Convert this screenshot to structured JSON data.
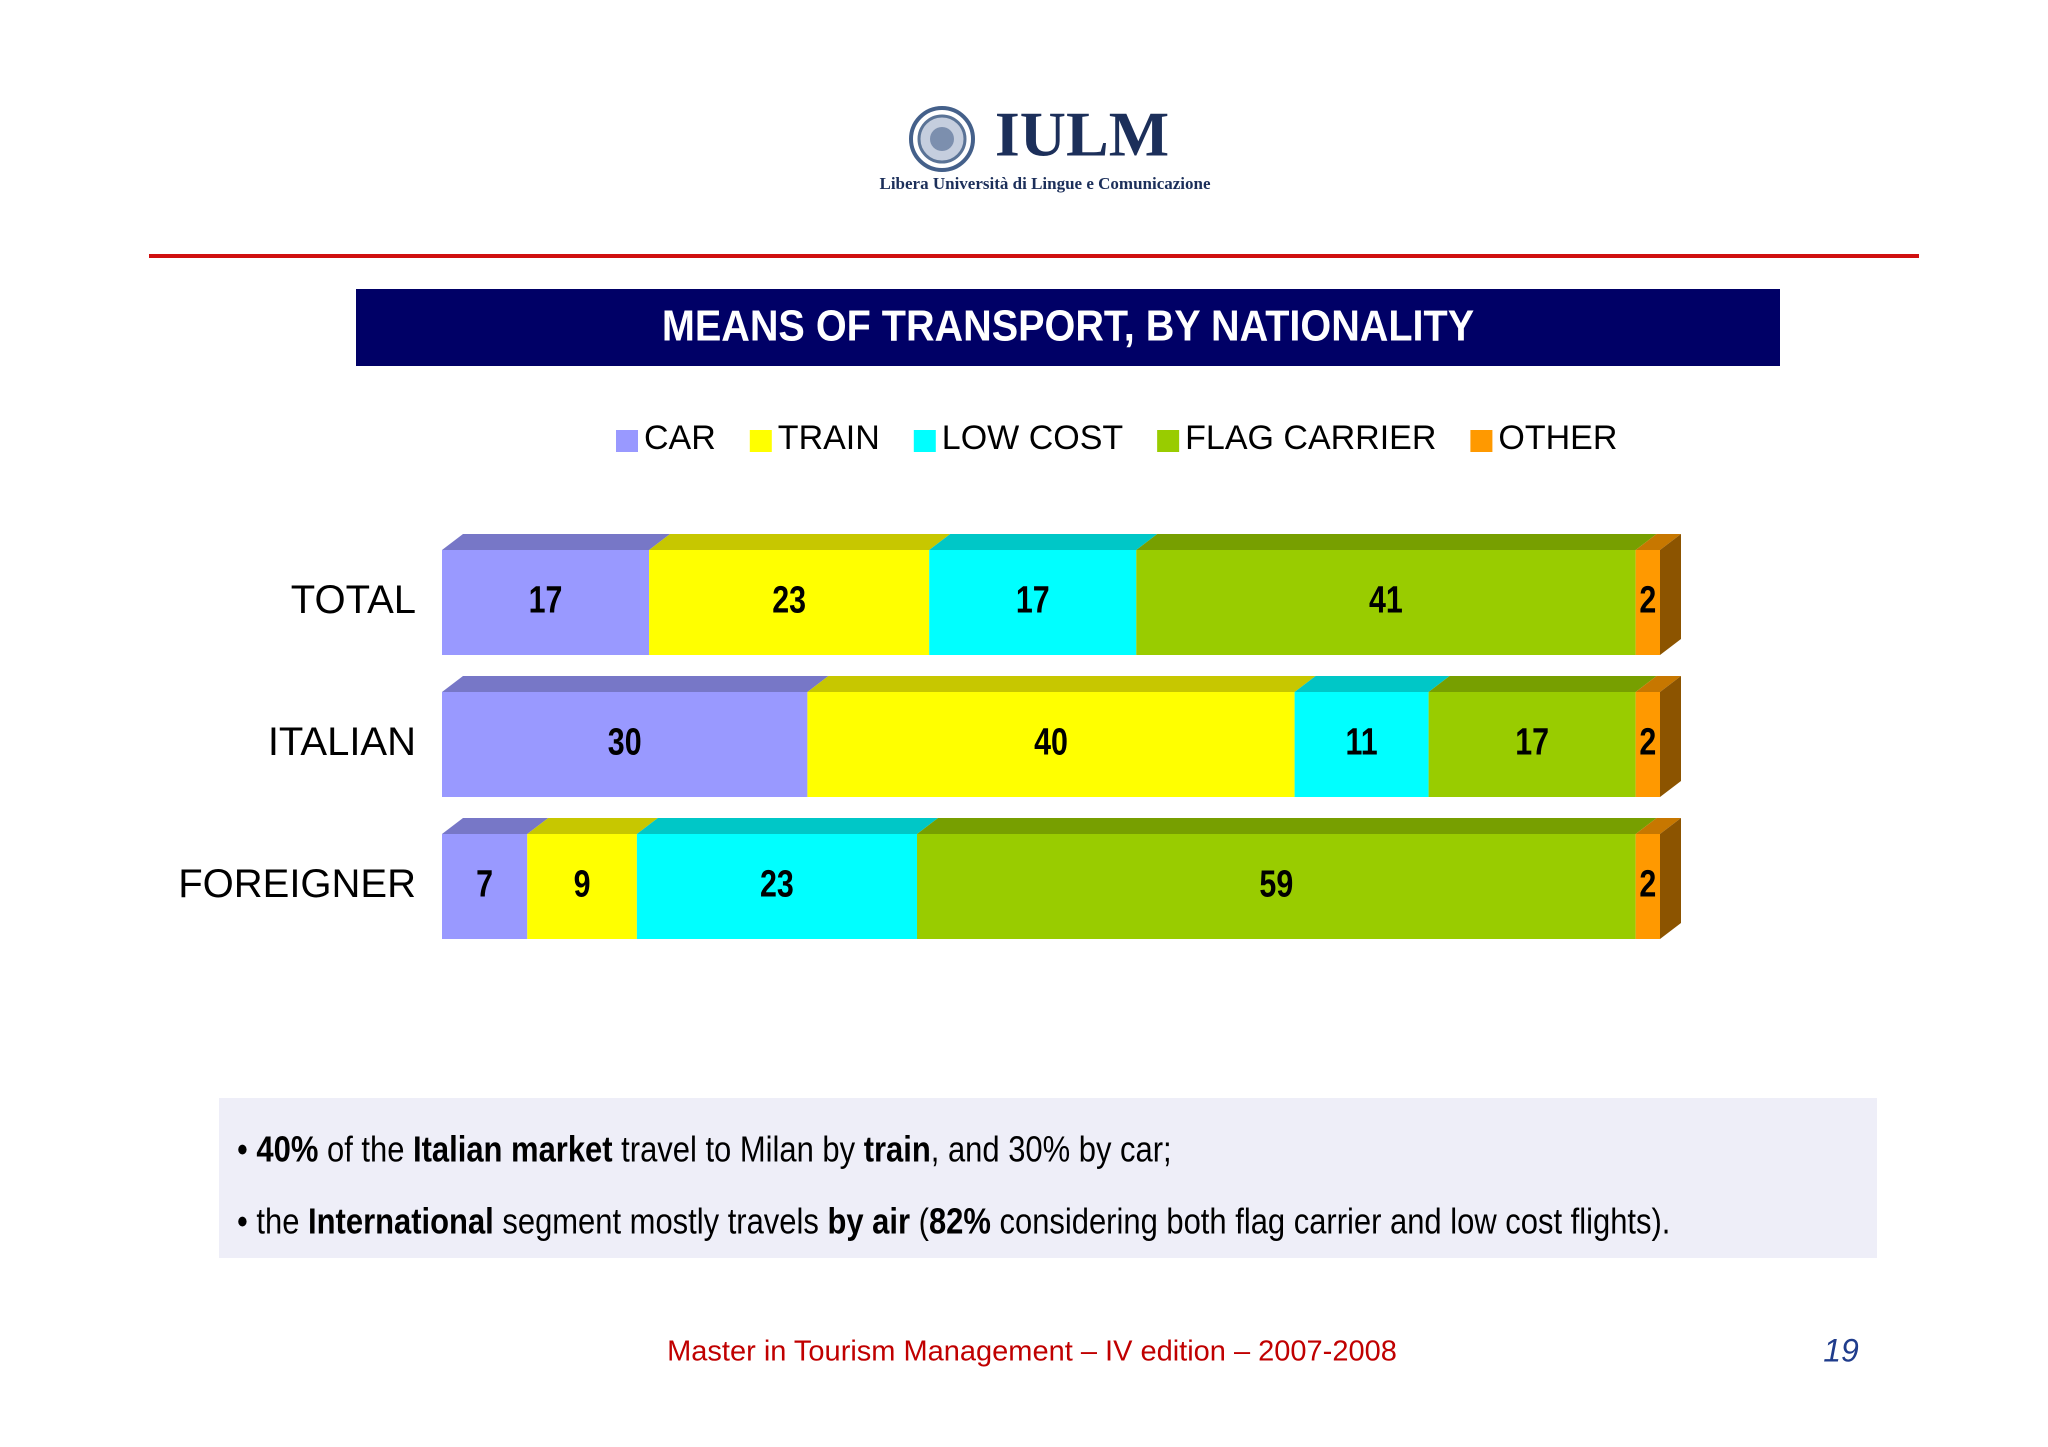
{
  "header": {
    "logo": "IULM",
    "subtitle": "Libera Università di Lingue e Comunicazione"
  },
  "chart_data": {
    "type": "stacked-bar-horizontal",
    "title": "MEANS OF TRANSPORT, BY NATIONALITY",
    "categories": [
      "TOTAL",
      "ITALIAN",
      "FOREIGNER"
    ],
    "xlim": [
      0,
      100
    ],
    "series": [
      {
        "name": "CAR",
        "color": "#9999ff",
        "values": [
          17,
          30,
          7
        ]
      },
      {
        "name": "TRAIN",
        "color": "#ffff00",
        "values": [
          23,
          40,
          9
        ]
      },
      {
        "name": "LOW COST",
        "color": "#00ffff",
        "values": [
          17,
          11,
          23
        ]
      },
      {
        "name": "FLAG CARRIER",
        "color": "#99cc00",
        "values": [
          41,
          17,
          59
        ]
      },
      {
        "name": "OTHER",
        "color": "#ff9900",
        "values": [
          2,
          2,
          2
        ]
      }
    ],
    "legend": "top"
  },
  "notes": [
    [
      {
        "text": "• "
      },
      {
        "text": "40%",
        "bold": true
      },
      {
        "text": " of the "
      },
      {
        "text": "Italian market",
        "bold": true
      },
      {
        "text": " travel to Milan by "
      },
      {
        "text": "train",
        "bold": true
      },
      {
        "text": ", and 30% by car;"
      }
    ],
    [
      {
        "text": "• the "
      },
      {
        "text": "International",
        "bold": true
      },
      {
        "text": " segment mostly travels "
      },
      {
        "text": "by air",
        "bold": true
      },
      {
        "text": " ("
      },
      {
        "text": "82%",
        "bold": true
      },
      {
        "text": " considering both flag carrier and low cost flights)."
      }
    ]
  ],
  "footer": {
    "text": "Master in Tourism Management – IV edition – 2007-2008",
    "page": "19"
  }
}
